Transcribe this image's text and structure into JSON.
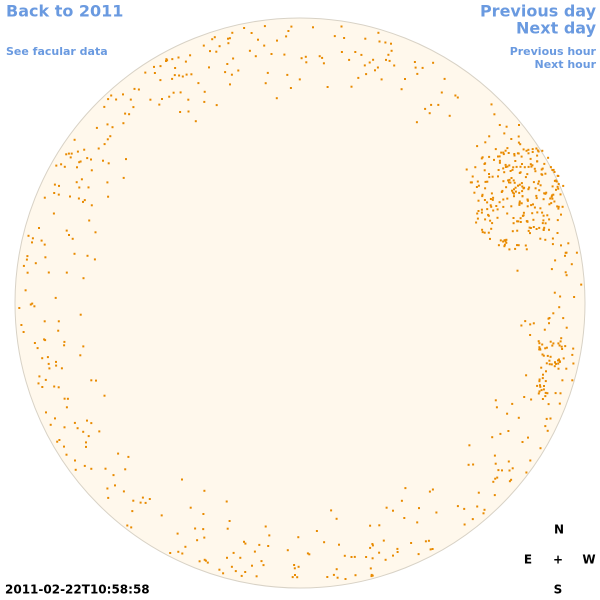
{
  "header": {
    "back_link": "Back to 2011",
    "facular_link": "See facular data"
  },
  "nav": {
    "previous_day": "Previous day",
    "next_day": "Next day",
    "previous_hour": "Previous hour",
    "next_hour": "Next hour"
  },
  "timestamp": "2011-02-22T10:58:58",
  "compass": {
    "n": "N",
    "e": "E",
    "center": "+",
    "w": "W",
    "s": "S"
  }
}
